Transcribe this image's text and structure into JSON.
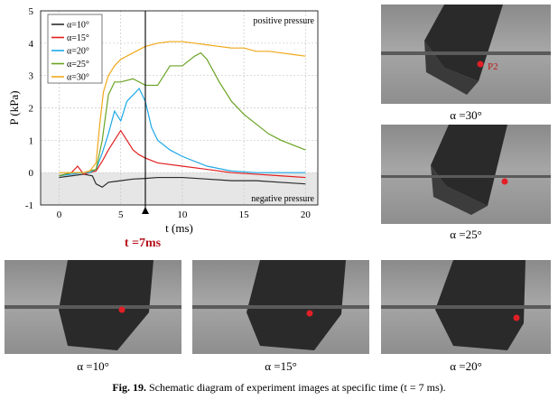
{
  "chart_data": {
    "type": "line",
    "xlabel": "t (ms)",
    "ylabel": "P (kPa)",
    "xlim": [
      -1.5,
      21
    ],
    "ylim": [
      -1,
      5
    ],
    "xticks": [
      0,
      5,
      10,
      15,
      20
    ],
    "yticks": [
      -1,
      0,
      1,
      2,
      3,
      4,
      5
    ],
    "grid": true,
    "legend_position": "top-left",
    "annotations": {
      "positive": "positive pressure",
      "negative": "negative pressure",
      "time_marker_value": 7,
      "time_marker_label": "t =7ms"
    },
    "series": [
      {
        "name": "α=10°",
        "color": "#2b2b2b",
        "x": [
          0,
          1,
          2,
          2.7,
          3.0,
          3.5,
          4,
          5,
          6,
          7,
          8,
          10,
          12,
          14,
          16,
          18,
          20
        ],
        "y": [
          -0.15,
          -0.1,
          -0.05,
          -0.1,
          -0.35,
          -0.45,
          -0.3,
          -0.25,
          -0.2,
          -0.18,
          -0.15,
          -0.15,
          -0.2,
          -0.25,
          -0.25,
          -0.3,
          -0.35
        ]
      },
      {
        "name": "α=15°",
        "color": "#e02020",
        "x": [
          0,
          1,
          1.5,
          2,
          2.5,
          3,
          3.5,
          4,
          4.5,
          5,
          5.5,
          6,
          6.5,
          7,
          8,
          10,
          12,
          14,
          16,
          18,
          20
        ],
        "y": [
          -0.1,
          0.0,
          0.2,
          -0.05,
          0.0,
          0.05,
          0.35,
          0.7,
          1.0,
          1.3,
          1.0,
          0.7,
          0.55,
          0.45,
          0.3,
          0.2,
          0.1,
          0.0,
          -0.05,
          -0.1,
          -0.15
        ]
      },
      {
        "name": "α=20°",
        "color": "#1ea8e6",
        "x": [
          0,
          1,
          2,
          2.5,
          3,
          3.5,
          4,
          4.5,
          5,
          5.5,
          6,
          6.5,
          7,
          7.5,
          8,
          9,
          10,
          12,
          14,
          16,
          18,
          20
        ],
        "y": [
          -0.1,
          -0.05,
          0.0,
          0.0,
          0.1,
          0.6,
          1.2,
          1.9,
          1.6,
          2.2,
          2.4,
          2.6,
          2.2,
          1.4,
          1.0,
          0.7,
          0.5,
          0.2,
          0.05,
          0.0,
          0.0,
          0.0
        ]
      },
      {
        "name": "α=25°",
        "color": "#6aa323",
        "x": [
          0,
          1,
          2,
          2.5,
          3,
          3.5,
          4,
          4.5,
          5,
          6,
          7,
          8,
          9,
          10,
          11,
          11.5,
          12,
          13,
          14,
          15,
          16,
          17,
          18,
          19,
          20
        ],
        "y": [
          -0.1,
          0.0,
          0.0,
          0.05,
          0.1,
          1.0,
          2.4,
          2.8,
          2.8,
          2.9,
          2.7,
          2.7,
          3.3,
          3.3,
          3.6,
          3.7,
          3.5,
          2.8,
          2.2,
          1.8,
          1.5,
          1.2,
          1.0,
          0.85,
          0.7
        ]
      },
      {
        "name": "α=30°",
        "color": "#f0a81a",
        "x": [
          0,
          1,
          2,
          2.5,
          3,
          3.3,
          3.6,
          4,
          4.5,
          5,
          6,
          7,
          8,
          9,
          10,
          11,
          12,
          13,
          14,
          15,
          16,
          17,
          18,
          19,
          20
        ],
        "y": [
          0.0,
          0.0,
          0.0,
          0.05,
          0.3,
          1.5,
          2.5,
          3.0,
          3.3,
          3.5,
          3.7,
          3.9,
          4.0,
          4.05,
          4.05,
          4.0,
          3.95,
          3.9,
          3.85,
          3.85,
          3.75,
          3.75,
          3.7,
          3.65,
          3.6
        ]
      }
    ]
  },
  "photos": [
    {
      "id": "p30",
      "caption": "α =30°",
      "label": "P2"
    },
    {
      "id": "p25",
      "caption": "α =25°",
      "label": ""
    },
    {
      "id": "p10",
      "caption": "α =10°",
      "label": ""
    },
    {
      "id": "p15",
      "caption": "α =15°",
      "label": ""
    },
    {
      "id": "p20",
      "caption": "α =20°",
      "label": ""
    }
  ],
  "figure": {
    "number": "Fig. 19.",
    "text": "Schematic diagram of experiment images at specific time (t = 7 ms)."
  }
}
